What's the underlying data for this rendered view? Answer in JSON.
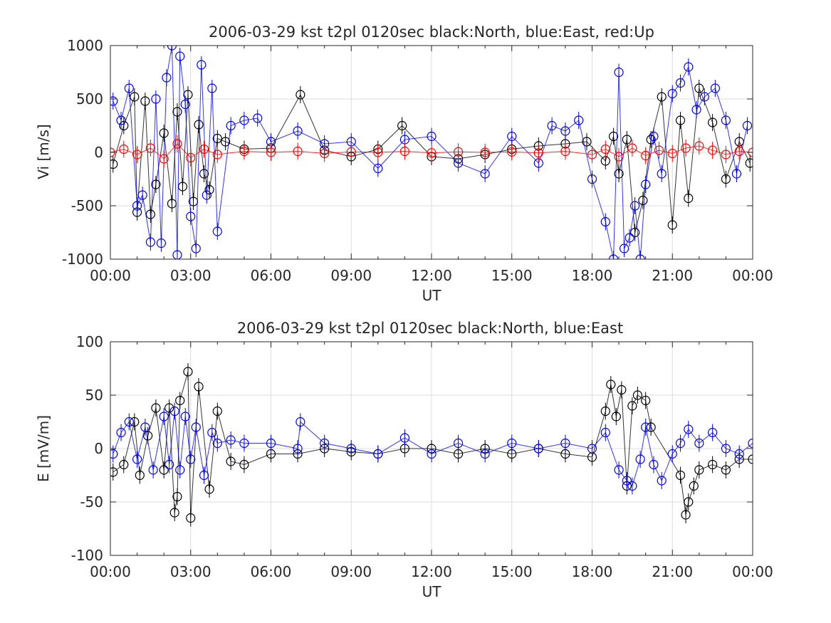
{
  "chart_data": [
    {
      "type": "scatter",
      "title": "2006-03-29 kst t2pl 0120sec black:North, blue:East, red:Up",
      "xlabel": "UT",
      "ylabel": "Vi [m/s]",
      "xlim": [
        0,
        24
      ],
      "ylim": [
        -1000,
        1000
      ],
      "xticks": [
        0,
        3,
        6,
        9,
        12,
        15,
        18,
        21,
        24
      ],
      "xtick_labels": [
        "00:00",
        "03:00",
        "06:00",
        "09:00",
        "12:00",
        "15:00",
        "18:00",
        "21:00",
        "00:00"
      ],
      "yticks": [
        -1000,
        -500,
        0,
        500,
        1000
      ],
      "ytick_labels": [
        "-1000",
        "-500",
        "0",
        "500",
        "1000"
      ],
      "grid": true,
      "marker": "circle-with-errorbar",
      "series": [
        {
          "color": "#000000",
          "x": [
            0.1,
            0.5,
            0.9,
            1.0,
            1.3,
            1.5,
            1.7,
            2.0,
            2.3,
            2.5,
            2.7,
            2.9,
            3.1,
            3.3,
            3.5,
            3.7,
            4.0,
            4.3,
            5.0,
            6.0,
            7.1,
            8.0,
            9.0,
            10.0,
            10.9,
            12.0,
            13.0,
            14.0,
            15.0,
            16.0,
            17.0,
            17.8,
            18.5,
            18.8,
            19.0,
            19.3,
            19.6,
            19.9,
            20.2,
            20.6,
            21.0,
            21.3,
            21.6,
            22.0,
            22.5,
            23.0,
            23.5,
            23.9
          ],
          "y": [
            -110,
            250,
            520,
            -560,
            480,
            -580,
            -300,
            180,
            -480,
            380,
            -320,
            540,
            -460,
            260,
            -200,
            -350,
            130,
            100,
            30,
            40,
            540,
            20,
            -40,
            30,
            250,
            -40,
            -60,
            -20,
            30,
            60,
            80,
            100,
            -80,
            150,
            -200,
            120,
            -750,
            -450,
            120,
            520,
            -680,
            300,
            -430,
            600,
            280,
            -250,
            100,
            -100
          ]
        },
        {
          "color": "#0000ff",
          "x": [
            0.1,
            0.4,
            0.7,
            1.0,
            1.2,
            1.5,
            1.7,
            1.9,
            2.1,
            2.3,
            2.5,
            2.6,
            2.8,
            3.0,
            3.2,
            3.4,
            3.6,
            3.8,
            4.0,
            4.5,
            5.0,
            5.5,
            6.0,
            7.0,
            8.0,
            9.0,
            10.0,
            11.0,
            12.0,
            13.0,
            14.0,
            15.0,
            16.0,
            16.5,
            17.0,
            17.5,
            18.0,
            18.5,
            18.8,
            19.0,
            19.2,
            19.4,
            19.6,
            19.8,
            20.0,
            20.3,
            20.6,
            21.0,
            21.3,
            21.6,
            21.9,
            22.2,
            22.6,
            23.0,
            23.4,
            23.8
          ],
          "y": [
            480,
            300,
            600,
            -500,
            -400,
            -840,
            500,
            -850,
            700,
            1000,
            -960,
            900,
            450,
            -600,
            -900,
            820,
            -400,
            600,
            -740,
            250,
            300,
            320,
            100,
            200,
            80,
            100,
            -150,
            120,
            150,
            -100,
            -200,
            150,
            -100,
            250,
            200,
            300,
            -250,
            -650,
            -1000,
            750,
            -900,
            -800,
            -500,
            -1000,
            -300,
            150,
            -200,
            550,
            650,
            800,
            400,
            520,
            600,
            300,
            -200,
            250
          ]
        },
        {
          "color": "#ff0000",
          "x": [
            0.0,
            0.5,
            1.0,
            1.5,
            2.0,
            2.5,
            3.0,
            3.5,
            4.0,
            5.0,
            6.0,
            7.0,
            8.0,
            9.0,
            10.0,
            11.0,
            12.0,
            13.0,
            14.0,
            15.0,
            16.0,
            17.0,
            18.0,
            18.5,
            19.0,
            19.5,
            20.0,
            20.5,
            21.0,
            21.5,
            22.0,
            22.5,
            23.0,
            23.5,
            24.0
          ],
          "y": [
            0,
            30,
            -20,
            40,
            -60,
            80,
            -50,
            30,
            -20,
            10,
            0,
            10,
            -10,
            5,
            0,
            10,
            -5,
            5,
            0,
            5,
            -5,
            10,
            -20,
            30,
            -40,
            40,
            -30,
            20,
            -10,
            40,
            60,
            20,
            -20,
            10,
            0
          ]
        }
      ]
    },
    {
      "type": "scatter",
      "title": "2006-03-29 kst t2pl 0120sec black:North, blue:East",
      "xlabel": "UT",
      "ylabel": "E [mV/m]",
      "xlim": [
        0,
        24
      ],
      "ylim": [
        -100,
        100
      ],
      "xticks": [
        0,
        3,
        6,
        9,
        12,
        15,
        18,
        21,
        24
      ],
      "xtick_labels": [
        "00:00",
        "03:00",
        "06:00",
        "09:00",
        "12:00",
        "15:00",
        "18:00",
        "21:00",
        "00:00"
      ],
      "yticks": [
        -100,
        -50,
        0,
        50,
        100
      ],
      "ytick_labels": [
        "-100",
        "-50",
        "0",
        "50",
        "100"
      ],
      "grid": true,
      "marker": "circle-with-errorbar",
      "series": [
        {
          "color": "#000000",
          "x": [
            0.1,
            0.5,
            0.9,
            1.1,
            1.4,
            1.7,
            2.0,
            2.2,
            2.4,
            2.5,
            2.6,
            2.9,
            3.0,
            3.3,
            3.7,
            4.0,
            4.5,
            5.0,
            6.0,
            7.0,
            8.0,
            9.0,
            10.0,
            11.0,
            12.0,
            13.0,
            14.0,
            15.0,
            16.0,
            17.0,
            18.0,
            18.5,
            18.7,
            18.9,
            19.1,
            19.3,
            19.5,
            19.7,
            20.0,
            20.2,
            21.3,
            21.5,
            21.6,
            21.8,
            22.0,
            22.5,
            23.0,
            23.5,
            24.0
          ],
          "y": [
            -22,
            -15,
            25,
            -25,
            12,
            38,
            -20,
            38,
            -60,
            -45,
            45,
            72,
            -65,
            58,
            -38,
            35,
            -12,
            -15,
            -5,
            -5,
            0,
            -3,
            -5,
            0,
            0,
            -5,
            0,
            -5,
            0,
            -5,
            -8,
            35,
            60,
            30,
            55,
            -35,
            40,
            50,
            45,
            20,
            -25,
            -62,
            -50,
            -35,
            -20,
            -15,
            -20,
            -10,
            -10
          ]
        },
        {
          "color": "#0000ff",
          "x": [
            0.1,
            0.4,
            0.7,
            1.0,
            1.3,
            1.6,
            2.0,
            2.2,
            2.4,
            2.6,
            2.8,
            3.0,
            3.2,
            3.5,
            3.8,
            4.0,
            4.5,
            5.0,
            6.0,
            7.0,
            7.1,
            8.0,
            9.0,
            10.0,
            11.0,
            12.0,
            13.0,
            14.0,
            15.0,
            16.0,
            17.0,
            18.0,
            18.5,
            19.0,
            19.3,
            19.5,
            19.8,
            20.0,
            20.3,
            20.6,
            21.0,
            21.3,
            21.6,
            22.0,
            22.5,
            23.0,
            23.5,
            24.0
          ],
          "y": [
            -5,
            15,
            25,
            -10,
            20,
            -20,
            30,
            -15,
            35,
            -20,
            30,
            -10,
            20,
            -25,
            15,
            5,
            8,
            5,
            5,
            0,
            25,
            5,
            0,
            -5,
            10,
            -5,
            5,
            -5,
            5,
            0,
            5,
            0,
            15,
            -20,
            -30,
            -35,
            -10,
            20,
            -15,
            -30,
            -5,
            5,
            18,
            5,
            15,
            0,
            -5,
            5
          ]
        }
      ]
    }
  ]
}
